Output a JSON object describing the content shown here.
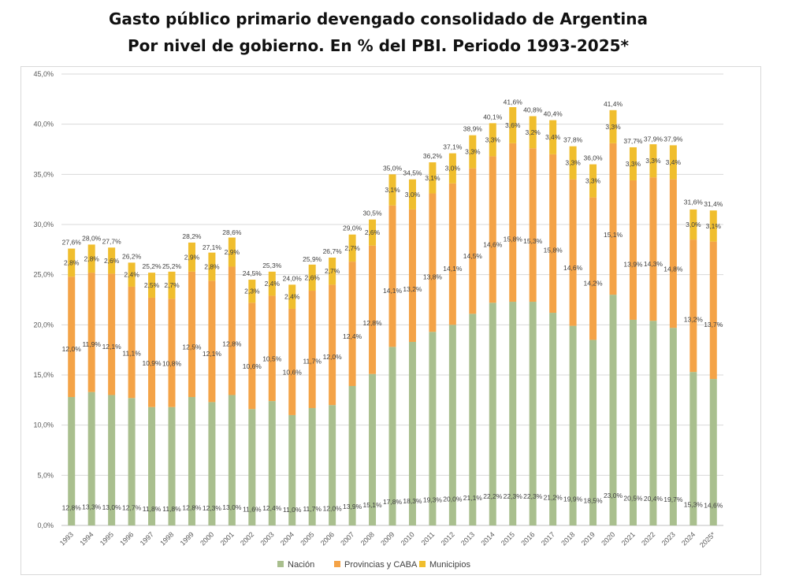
{
  "title": {
    "line1": "Gasto público primario devengado consolidado de Argentina",
    "line2": "Por nivel de gobierno. En % del PBI. Periodo 1993-2025*"
  },
  "chart_data": {
    "type": "bar",
    "stacked": true,
    "title": "Gasto público primario devengado consolidado de Argentina - Por nivel de gobierno. En % del PBI. Periodo 1993-2025*",
    "xlabel": "",
    "ylabel": "",
    "ylim": [
      0,
      45
    ],
    "yticks": [
      "0,0%",
      "5,0%",
      "10,0%",
      "15,0%",
      "20,0%",
      "25,0%",
      "30,0%",
      "35,0%",
      "40,0%",
      "45,0%"
    ],
    "grid": true,
    "legend_position": "bottom",
    "categories": [
      "1993",
      "1994",
      "1995",
      "1996",
      "1997",
      "1998",
      "1999",
      "2000",
      "2001",
      "2002",
      "2003",
      "2004",
      "2005",
      "2006",
      "2007",
      "2008",
      "2009",
      "2010",
      "2011",
      "2012",
      "2013",
      "2014",
      "2015",
      "2016",
      "2017",
      "2018",
      "2019",
      "2020",
      "2021",
      "2022",
      "2023",
      "2024",
      "2025*"
    ],
    "series": [
      {
        "name": "Nación",
        "color": "#a9bf8e",
        "values": [
          12.8,
          13.3,
          13.0,
          12.7,
          11.8,
          11.8,
          12.8,
          12.3,
          13.0,
          11.6,
          12.4,
          11.0,
          11.7,
          12.0,
          13.9,
          15.1,
          17.8,
          18.3,
          19.3,
          20.0,
          21.1,
          22.2,
          22.3,
          22.3,
          21.2,
          19.9,
          18.5,
          23.0,
          20.5,
          20.4,
          19.7,
          15.3,
          14.6
        ],
        "labels": [
          "12,8%",
          "13,3%",
          "13,0%",
          "12,7%",
          "11,8%",
          "11,8%",
          "12,8%",
          "12,3%",
          "13,0%",
          "11,6%",
          "12,4%",
          "11,0%",
          "11,7%",
          "12,0%",
          "13,9%",
          "15,1%",
          "17,8%",
          "18,3%",
          "19,3%",
          "20,0%",
          "21,1%",
          "22,2%",
          "22,3%",
          "22,3%",
          "21,2%",
          "19,9%",
          "18,5%",
          "23,0%",
          "20,5%",
          "20,4%",
          "19,7%",
          "15,3%",
          "14,6%"
        ]
      },
      {
        "name": "Provincias y CABA",
        "color": "#f4a347",
        "values": [
          12.0,
          11.9,
          12.1,
          11.1,
          10.9,
          10.8,
          12.5,
          12.1,
          12.8,
          10.6,
          10.5,
          10.6,
          11.7,
          12.0,
          12.4,
          12.8,
          14.1,
          13.2,
          13.8,
          14.1,
          14.5,
          14.6,
          15.8,
          15.3,
          15.8,
          14.6,
          14.2,
          15.1,
          13.9,
          14.3,
          14.8,
          13.2,
          13.7
        ],
        "labels": [
          "12,0%",
          "11,9%",
          "12,1%",
          "11,1%",
          "10,9%",
          "10,8%",
          "12,5%",
          "12,1%",
          "12,8%",
          "10,6%",
          "10,5%",
          "10,6%",
          "11,7%",
          "12,0%",
          "12,4%",
          "12,8%",
          "14,1%",
          "13,2%",
          "13,8%",
          "14,1%",
          "14,5%",
          "14,6%",
          "15,8%",
          "15,3%",
          "15,8%",
          "14,6%",
          "14,2%",
          "15,1%",
          "13,9%",
          "14,3%",
          "14,8%",
          "13,2%",
          "13,7%"
        ]
      },
      {
        "name": "Municipios",
        "color": "#f0be2e",
        "values": [
          2.8,
          2.8,
          2.6,
          2.4,
          2.5,
          2.7,
          2.9,
          2.8,
          2.9,
          2.3,
          2.4,
          2.4,
          2.6,
          2.7,
          2.7,
          2.6,
          3.1,
          3.0,
          3.1,
          3.0,
          3.3,
          3.3,
          3.6,
          3.2,
          3.4,
          3.3,
          3.3,
          3.3,
          3.3,
          3.3,
          3.4,
          3.0,
          3.1
        ],
        "labels": [
          "2,8%",
          "2,8%",
          "2,6%",
          "2,4%",
          "2,5%",
          "2,7%",
          "2,9%",
          "2,8%",
          "2,9%",
          "2,3%",
          "2,4%",
          "2,4%",
          "2,6%",
          "2,7%",
          "2,7%",
          "2,6%",
          "3,1%",
          "3,0%",
          "3,1%",
          "3,0%",
          "3,3%",
          "3,3%",
          "3,6%",
          "3,2%",
          "3,4%",
          "3,3%",
          "3,3%",
          "3,3%",
          "3,3%",
          "3,3%",
          "3,4%",
          "3,0%",
          "3,1%"
        ]
      }
    ],
    "totals": [
      27.6,
      28.0,
      27.7,
      26.2,
      25.2,
      25.2,
      28.2,
      27.1,
      28.6,
      24.5,
      25.3,
      24.0,
      25.9,
      26.7,
      29.0,
      30.5,
      35.0,
      34.5,
      36.2,
      37.1,
      38.9,
      40.1,
      41.6,
      40.8,
      40.4,
      37.8,
      36.0,
      41.4,
      37.7,
      37.9,
      37.9,
      31.6,
      31.4
    ],
    "total_labels": [
      "27,6%",
      "28,0%",
      "27,7%",
      "26,2%",
      "25,2%",
      "25,2%",
      "28,2%",
      "27,1%",
      "28,6%",
      "24,5%",
      "25,3%",
      "24,0%",
      "25,9%",
      "26,7%",
      "29,0%",
      "30,5%",
      "35,0%",
      "34,5%",
      "36,2%",
      "37,1%",
      "38,9%",
      "40,1%",
      "41,6%",
      "40,8%",
      "40,4%",
      "37,8%",
      "36,0%",
      "41,4%",
      "37,7%",
      "37,9%",
      "37,9%",
      "31,6%",
      "31,4%"
    ]
  }
}
